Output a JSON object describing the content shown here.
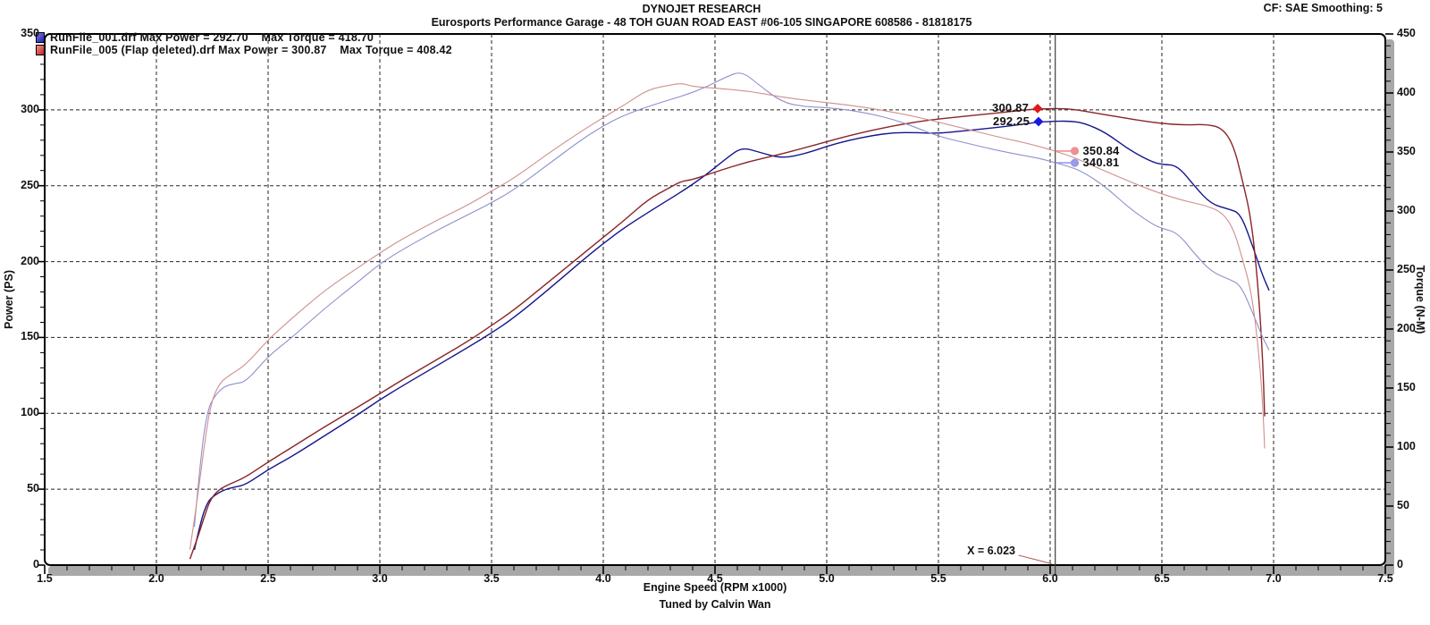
{
  "header": {
    "title": "DYNOJET RESEARCH",
    "subtitle": "Eurosports Performance Garage - 48 TOH GUAN ROAD EAST #06-105 SINGAPORE 608586 - 81818175",
    "cf_smoothing": "CF: SAE  Smoothing: 5"
  },
  "legend": {
    "runs": [
      {
        "file": "RunFile_001.drf",
        "label": "RunFile_001.drf Max Power = 292.70    Max Torque = 418.70",
        "max_power": "292.70",
        "max_torque": "418.70",
        "marker_color": "#3a3ad2"
      },
      {
        "file": "RunFile_005 (Flap deleted).drf",
        "label": "RunFile_005 (Flap deleted).drf Max Power = 300.87    Max Torque = 408.42",
        "max_power": "300.87",
        "max_torque": "408.42",
        "marker_color": "#d23a3a"
      }
    ]
  },
  "footer": {
    "xlabel": "Engine Speed (RPM x1000)",
    "credit": "Tuned by Calvin Wan"
  },
  "axes": {
    "power": {
      "title": "Power (PS)",
      "range": [
        0,
        350
      ],
      "ticks": [
        0,
        50,
        100,
        150,
        200,
        250,
        300,
        350
      ],
      "minor_step": 10,
      "grid_ticks": [
        50,
        100,
        150,
        200,
        250,
        300
      ]
    },
    "torque": {
      "title": "Torque (N-M)",
      "range": [
        0,
        450
      ],
      "ticks": [
        0,
        50,
        100,
        150,
        200,
        250,
        300,
        350,
        400,
        450
      ],
      "minor_step": 10
    },
    "rpm": {
      "range": [
        1.5,
        7.5
      ],
      "tick_labels": [
        "1.5",
        "2.0",
        "2.5",
        "3.0",
        "3.5",
        "4.0",
        "4.5",
        "5.0",
        "5.5",
        "6.0",
        "6.5",
        "7.0",
        "7.5"
      ],
      "minor_step": 0.1,
      "grid_ticks": [
        2.0,
        2.5,
        3.0,
        3.5,
        4.0,
        4.5,
        5.0,
        5.5,
        6.0,
        6.5,
        7.0
      ]
    }
  },
  "cursor": {
    "x": 6.023,
    "label": "X = 6.023",
    "readouts": [
      {
        "series": "run2_power",
        "value": "300.87",
        "axis": "power",
        "rpm": 5.944,
        "marker": "diamond",
        "marker_color": "#e01818",
        "label_side": "left"
      },
      {
        "series": "run1_power",
        "value": "292.25",
        "axis": "power",
        "rpm": 5.948,
        "marker": "diamond",
        "marker_color": "#1818e0",
        "label_side": "left"
      },
      {
        "series": "run2_torque",
        "value": "350.84",
        "axis": "torque",
        "rpm": 6.11,
        "marker": "dot",
        "marker_color": "#ee9090",
        "label_side": "right"
      },
      {
        "series": "run1_torque",
        "value": "340.81",
        "axis": "torque",
        "rpm": 6.11,
        "marker": "dot",
        "marker_color": "#9a9ae8",
        "label_side": "right"
      }
    ]
  },
  "chart_data": {
    "type": "line",
    "title": "DYNOJET RESEARCH",
    "xlabel": "Engine Speed (RPM x1000)",
    "xlim": [
      1.5,
      7.5
    ],
    "y_left": {
      "label": "Power (PS)",
      "lim": [
        0,
        350
      ]
    },
    "y_right": {
      "label": "Torque (N-M)",
      "lim": [
        0,
        450
      ]
    },
    "grid": "dashed",
    "legend_position": "top-left",
    "series": [
      {
        "id": "run1_power",
        "name": "RunFile_001.drf Power (PS)",
        "axis": "left",
        "color": "#15158f",
        "width": 1.4,
        "max": 292.7,
        "points": [
          [
            2.17,
            10
          ],
          [
            2.2,
            30
          ],
          [
            2.23,
            42
          ],
          [
            2.26,
            46
          ],
          [
            2.3,
            49.5
          ],
          [
            2.35,
            51.5
          ],
          [
            2.4,
            53
          ],
          [
            2.5,
            63
          ],
          [
            2.6,
            71
          ],
          [
            2.75,
            85
          ],
          [
            2.9,
            99
          ],
          [
            3.0,
            109
          ],
          [
            3.1,
            118
          ],
          [
            3.25,
            131
          ],
          [
            3.4,
            144
          ],
          [
            3.5,
            153
          ],
          [
            3.6,
            163
          ],
          [
            3.75,
            181
          ],
          [
            3.9,
            200
          ],
          [
            4.0,
            212
          ],
          [
            4.1,
            223
          ],
          [
            4.25,
            237
          ],
          [
            4.35,
            246
          ],
          [
            4.45,
            256
          ],
          [
            4.55,
            268
          ],
          [
            4.62,
            275.4
          ],
          [
            4.7,
            272
          ],
          [
            4.8,
            268
          ],
          [
            4.9,
            271
          ],
          [
            5.0,
            276
          ],
          [
            5.1,
            280
          ],
          [
            5.2,
            283
          ],
          [
            5.3,
            285
          ],
          [
            5.4,
            285
          ],
          [
            5.5,
            284.5
          ],
          [
            5.6,
            286
          ],
          [
            5.7,
            287.5
          ],
          [
            5.8,
            289
          ],
          [
            5.9,
            291
          ],
          [
            5.95,
            292
          ],
          [
            6.0,
            292.3
          ],
          [
            6.08,
            292.7
          ],
          [
            6.15,
            291.5
          ],
          [
            6.25,
            285
          ],
          [
            6.35,
            274
          ],
          [
            6.45,
            266
          ],
          [
            6.5,
            264
          ],
          [
            6.57,
            263.5
          ],
          [
            6.65,
            249
          ],
          [
            6.72,
            238
          ],
          [
            6.8,
            234.5
          ],
          [
            6.85,
            232
          ],
          [
            6.9,
            213
          ],
          [
            6.95,
            191
          ],
          [
            6.98,
            181
          ]
        ]
      },
      {
        "id": "run2_power",
        "name": "RunFile_005 (Flap deleted).drf Power (PS)",
        "axis": "left",
        "color": "#8b2424",
        "width": 1.4,
        "max": 300.87,
        "points": [
          [
            2.15,
            4
          ],
          [
            2.18,
            16
          ],
          [
            2.21,
            30
          ],
          [
            2.24,
            43
          ],
          [
            2.28,
            50
          ],
          [
            2.33,
            53.5
          ],
          [
            2.4,
            58
          ],
          [
            2.5,
            68
          ],
          [
            2.6,
            77
          ],
          [
            2.75,
            91
          ],
          [
            2.9,
            104
          ],
          [
            3.0,
            113
          ],
          [
            3.1,
            122
          ],
          [
            3.25,
            135
          ],
          [
            3.4,
            148
          ],
          [
            3.5,
            158
          ],
          [
            3.6,
            168
          ],
          [
            3.75,
            186
          ],
          [
            3.9,
            204
          ],
          [
            4.0,
            216
          ],
          [
            4.1,
            228
          ],
          [
            4.2,
            241
          ],
          [
            4.3,
            249
          ],
          [
            4.35,
            253
          ],
          [
            4.4,
            254
          ],
          [
            4.5,
            259
          ],
          [
            4.65,
            266
          ],
          [
            4.8,
            271
          ],
          [
            4.9,
            275
          ],
          [
            5.0,
            279
          ],
          [
            5.1,
            283
          ],
          [
            5.2,
            286.5
          ],
          [
            5.3,
            289.5
          ],
          [
            5.4,
            292
          ],
          [
            5.5,
            294
          ],
          [
            5.6,
            295.5
          ],
          [
            5.7,
            297
          ],
          [
            5.8,
            298.5
          ],
          [
            5.9,
            300.2
          ],
          [
            6.0,
            300.8
          ],
          [
            6.02,
            300.87
          ],
          [
            6.1,
            300.5
          ],
          [
            6.2,
            298
          ],
          [
            6.3,
            295.5
          ],
          [
            6.4,
            293
          ],
          [
            6.5,
            291
          ],
          [
            6.6,
            290
          ],
          [
            6.7,
            290.5
          ],
          [
            6.77,
            288
          ],
          [
            6.82,
            277
          ],
          [
            6.86,
            254
          ],
          [
            6.9,
            228
          ],
          [
            6.93,
            185
          ],
          [
            6.95,
            140
          ],
          [
            6.96,
            98
          ]
        ]
      },
      {
        "id": "run1_torque",
        "name": "RunFile_001.drf Torque (N-M)",
        "axis": "right",
        "color": "#8f8fce",
        "width": 1.1,
        "max": 418.7,
        "points": [
          [
            2.17,
            32.4
          ],
          [
            2.2,
            95.8
          ],
          [
            2.23,
            132.3
          ],
          [
            2.26,
            143.0
          ],
          [
            2.3,
            151.1
          ],
          [
            2.35,
            153.9
          ],
          [
            2.4,
            155.1
          ],
          [
            2.5,
            177.0
          ],
          [
            2.6,
            191.8
          ],
          [
            2.75,
            217.1
          ],
          [
            2.9,
            239.7
          ],
          [
            3.0,
            255.2
          ],
          [
            3.1,
            267.3
          ],
          [
            3.25,
            283.1
          ],
          [
            3.4,
            297.4
          ],
          [
            3.5,
            307.0
          ],
          [
            3.6,
            318.0
          ],
          [
            3.75,
            339.0
          ],
          [
            3.9,
            360.2
          ],
          [
            4.0,
            372.2
          ],
          [
            4.1,
            381.9
          ],
          [
            4.25,
            391.6
          ],
          [
            4.35,
            397.2
          ],
          [
            4.45,
            404.0
          ],
          [
            4.55,
            413.7
          ],
          [
            4.62,
            418.6
          ],
          [
            4.7,
            406.4
          ],
          [
            4.8,
            392.1
          ],
          [
            4.9,
            388.4
          ],
          [
            5.0,
            387.7
          ],
          [
            5.1,
            385.5
          ],
          [
            5.2,
            382.2
          ],
          [
            5.3,
            377.6
          ],
          [
            5.4,
            370.7
          ],
          [
            5.5,
            363.3
          ],
          [
            5.6,
            358.7
          ],
          [
            5.7,
            354.2
          ],
          [
            5.8,
            350.0
          ],
          [
            5.9,
            346.4
          ],
          [
            5.95,
            344.7
          ],
          [
            6.0,
            342.1
          ],
          [
            6.08,
            338.1
          ],
          [
            6.15,
            332.9
          ],
          [
            6.25,
            320.2
          ],
          [
            6.35,
            303.1
          ],
          [
            6.45,
            289.7
          ],
          [
            6.5,
            285.2
          ],
          [
            6.57,
            281.7
          ],
          [
            6.65,
            263.0
          ],
          [
            6.72,
            248.7
          ],
          [
            6.8,
            242.2
          ],
          [
            6.85,
            237.9
          ],
          [
            6.9,
            216.8
          ],
          [
            6.95,
            193.0
          ],
          [
            6.98,
            182.1
          ]
        ]
      },
      {
        "id": "run2_torque",
        "name": "RunFile_005 (Flap deleted).drf Torque (N-M)",
        "axis": "right",
        "color": "#cf8f8f",
        "width": 1.1,
        "max": 408.42,
        "points": [
          [
            2.15,
            13.1
          ],
          [
            2.18,
            51.5
          ],
          [
            2.21,
            95.3
          ],
          [
            2.24,
            134.8
          ],
          [
            2.28,
            154.0
          ],
          [
            2.33,
            161.3
          ],
          [
            2.4,
            169.7
          ],
          [
            2.5,
            191.0
          ],
          [
            2.6,
            208.0
          ],
          [
            2.75,
            232.4
          ],
          [
            2.9,
            251.8
          ],
          [
            3.0,
            264.5
          ],
          [
            3.1,
            276.4
          ],
          [
            3.25,
            291.7
          ],
          [
            3.4,
            305.7
          ],
          [
            3.5,
            317.0
          ],
          [
            3.6,
            327.7
          ],
          [
            3.75,
            348.3
          ],
          [
            3.9,
            367.4
          ],
          [
            4.0,
            379.2
          ],
          [
            4.1,
            390.5
          ],
          [
            4.2,
            403.0
          ],
          [
            4.3,
            406.7
          ],
          [
            4.35,
            408.4
          ],
          [
            4.4,
            405.4
          ],
          [
            4.5,
            404.2
          ],
          [
            4.65,
            401.7
          ],
          [
            4.8,
            396.5
          ],
          [
            4.9,
            394.1
          ],
          [
            5.0,
            391.9
          ],
          [
            5.1,
            389.7
          ],
          [
            5.2,
            387.0
          ],
          [
            5.3,
            383.6
          ],
          [
            5.4,
            379.8
          ],
          [
            5.5,
            375.4
          ],
          [
            5.6,
            370.6
          ],
          [
            5.7,
            365.9
          ],
          [
            5.8,
            361.4
          ],
          [
            5.9,
            357.3
          ],
          [
            6.0,
            352.1
          ],
          [
            6.02,
            350.8
          ],
          [
            6.1,
            346.0
          ],
          [
            6.2,
            337.6
          ],
          [
            6.3,
            329.4
          ],
          [
            6.4,
            321.5
          ],
          [
            6.5,
            314.4
          ],
          [
            6.6,
            308.6
          ],
          [
            6.7,
            304.5
          ],
          [
            6.77,
            298.8
          ],
          [
            6.82,
            285.2
          ],
          [
            6.86,
            260.0
          ],
          [
            6.9,
            232.1
          ],
          [
            6.93,
            187.5
          ],
          [
            6.95,
            141.5
          ],
          [
            6.96,
            98.9
          ]
        ]
      }
    ]
  },
  "colors": {
    "grid": "#262626",
    "frame": "#000000",
    "shadow_band": "#a8a8a8",
    "cursor_line": "#3c3c3c",
    "cursor_pointer": "#b25555"
  }
}
